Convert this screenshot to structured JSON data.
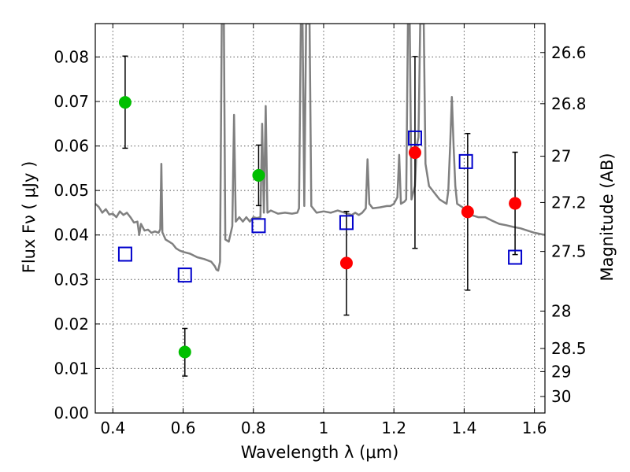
{
  "chart_data": {
    "type": "scatter",
    "xlabel": "Wavelength  λ (μm)",
    "ylabel": "Flux  Fν  ( μJy )",
    "y2label": "Magnitude (AB)",
    "xlim": [
      0.35,
      1.63
    ],
    "ylim": [
      0.0,
      0.0875
    ],
    "x_ticks": [
      0.4,
      0.6,
      0.8,
      1.0,
      1.2,
      1.4,
      1.6
    ],
    "x_tick_labels": [
      "0.4",
      "0.6",
      "0.8",
      "1",
      "1.2",
      "1.4",
      "1.6"
    ],
    "y_ticks": [
      0.0,
      0.01,
      0.02,
      0.03,
      0.04,
      0.05,
      0.06,
      0.07,
      0.08
    ],
    "y_tick_labels": [
      "0.00",
      "0.01",
      "0.02",
      "0.03",
      "0.04",
      "0.05",
      "0.06",
      "0.07",
      "0.08"
    ],
    "y2_ticks": [
      {
        "label": "26.6",
        "flux": 0.081
      },
      {
        "label": "26.8",
        "flux": 0.0695
      },
      {
        "label": "27",
        "flux": 0.0577
      },
      {
        "label": "27.2",
        "flux": 0.0473
      },
      {
        "label": "27.5",
        "flux": 0.0363
      },
      {
        "label": "28",
        "flux": 0.0229
      },
      {
        "label": "28.5",
        "flux": 0.0145
      },
      {
        "label": "29",
        "flux": 0.0093
      },
      {
        "label": "30",
        "flux": 0.0037
      }
    ],
    "grid": true,
    "series": [
      {
        "name": "model spectrum",
        "kind": "line",
        "color": "#808080",
        "points": [
          [
            0.35,
            0.047
          ],
          [
            0.36,
            0.0463
          ],
          [
            0.37,
            0.045
          ],
          [
            0.38,
            0.0458
          ],
          [
            0.39,
            0.0446
          ],
          [
            0.4,
            0.0448
          ],
          [
            0.41,
            0.044
          ],
          [
            0.42,
            0.0453
          ],
          [
            0.43,
            0.0445
          ],
          [
            0.44,
            0.045
          ],
          [
            0.45,
            0.044
          ],
          [
            0.46,
            0.0428
          ],
          [
            0.47,
            0.043
          ],
          [
            0.475,
            0.04
          ],
          [
            0.48,
            0.0425
          ],
          [
            0.49,
            0.041
          ],
          [
            0.5,
            0.0412
          ],
          [
            0.51,
            0.0405
          ],
          [
            0.52,
            0.0408
          ],
          [
            0.53,
            0.0405
          ],
          [
            0.535,
            0.0413
          ],
          [
            0.538,
            0.056
          ],
          [
            0.541,
            0.0406
          ],
          [
            0.55,
            0.039
          ],
          [
            0.56,
            0.0385
          ],
          [
            0.57,
            0.038
          ],
          [
            0.58,
            0.037
          ],
          [
            0.59,
            0.0365
          ],
          [
            0.6,
            0.0362
          ],
          [
            0.62,
            0.0358
          ],
          [
            0.64,
            0.035
          ],
          [
            0.66,
            0.0346
          ],
          [
            0.68,
            0.034
          ],
          [
            0.69,
            0.033
          ],
          [
            0.695,
            0.0322
          ],
          [
            0.7,
            0.032
          ],
          [
            0.705,
            0.034
          ],
          [
            0.71,
            0.0875
          ],
          [
            0.716,
            0.0875
          ],
          [
            0.72,
            0.039
          ],
          [
            0.73,
            0.0385
          ],
          [
            0.74,
            0.042
          ],
          [
            0.745,
            0.067
          ],
          [
            0.75,
            0.043
          ],
          [
            0.76,
            0.044
          ],
          [
            0.77,
            0.043
          ],
          [
            0.78,
            0.044
          ],
          [
            0.79,
            0.043
          ],
          [
            0.8,
            0.044
          ],
          [
            0.81,
            0.0438
          ],
          [
            0.82,
            0.044
          ],
          [
            0.825,
            0.065
          ],
          [
            0.83,
            0.045
          ],
          [
            0.835,
            0.069
          ],
          [
            0.84,
            0.045
          ],
          [
            0.85,
            0.0455
          ],
          [
            0.87,
            0.0448
          ],
          [
            0.89,
            0.045
          ],
          [
            0.91,
            0.0448
          ],
          [
            0.925,
            0.045
          ],
          [
            0.93,
            0.046
          ],
          [
            0.935,
            0.0875
          ],
          [
            0.94,
            0.0875
          ],
          [
            0.945,
            0.0465
          ],
          [
            0.95,
            0.0875
          ],
          [
            0.955,
            0.0875
          ],
          [
            0.96,
            0.0875
          ],
          [
            0.965,
            0.0465
          ],
          [
            0.98,
            0.045
          ],
          [
            1.0,
            0.0453
          ],
          [
            1.02,
            0.045
          ],
          [
            1.04,
            0.0455
          ],
          [
            1.06,
            0.045
          ],
          [
            1.08,
            0.0445
          ],
          [
            1.09,
            0.045
          ],
          [
            1.1,
            0.0445
          ],
          [
            1.11,
            0.045
          ],
          [
            1.12,
            0.046
          ],
          [
            1.125,
            0.057
          ],
          [
            1.13,
            0.047
          ],
          [
            1.14,
            0.046
          ],
          [
            1.16,
            0.0462
          ],
          [
            1.18,
            0.0465
          ],
          [
            1.19,
            0.0465
          ],
          [
            1.2,
            0.047
          ],
          [
            1.21,
            0.0485
          ],
          [
            1.215,
            0.058
          ],
          [
            1.22,
            0.047
          ],
          [
            1.23,
            0.0475
          ],
          [
            1.235,
            0.048
          ],
          [
            1.24,
            0.0875
          ],
          [
            1.245,
            0.0875
          ],
          [
            1.25,
            0.048
          ],
          [
            1.26,
            0.051
          ],
          [
            1.265,
            0.06
          ],
          [
            1.27,
            0.062
          ],
          [
            1.275,
            0.0875
          ],
          [
            1.285,
            0.0875
          ],
          [
            1.29,
            0.056
          ],
          [
            1.3,
            0.051
          ],
          [
            1.31,
            0.05
          ],
          [
            1.32,
            0.049
          ],
          [
            1.33,
            0.048
          ],
          [
            1.34,
            0.0475
          ],
          [
            1.35,
            0.047
          ],
          [
            1.355,
            0.05
          ],
          [
            1.36,
            0.06
          ],
          [
            1.365,
            0.071
          ],
          [
            1.37,
            0.06
          ],
          [
            1.375,
            0.051
          ],
          [
            1.38,
            0.047
          ],
          [
            1.4,
            0.046
          ],
          [
            1.42,
            0.0445
          ],
          [
            1.44,
            0.044
          ],
          [
            1.46,
            0.044
          ],
          [
            1.48,
            0.0432
          ],
          [
            1.5,
            0.0425
          ],
          [
            1.52,
            0.0422
          ],
          [
            1.54,
            0.0418
          ],
          [
            1.56,
            0.0415
          ],
          [
            1.58,
            0.041
          ],
          [
            1.6,
            0.0405
          ],
          [
            1.63,
            0.04
          ]
        ]
      },
      {
        "name": "green detections",
        "kind": "points",
        "color": "#00bf00",
        "marker": "circle",
        "x": [
          0.435,
          0.605,
          0.815
        ],
        "y": [
          0.0698,
          0.0137,
          0.0534
        ],
        "err_low": [
          0.0595,
          0.0083,
          0.0466
        ],
        "err_high": [
          0.0802,
          0.019,
          0.0602
        ]
      },
      {
        "name": "red detections",
        "kind": "points",
        "color": "#ff0000",
        "marker": "circle",
        "x": [
          1.065,
          1.26,
          1.41,
          1.545
        ],
        "y": [
          0.0337,
          0.0585,
          0.0452,
          0.0471
        ],
        "err_low": [
          0.022,
          0.037,
          0.0276,
          0.0356
        ],
        "err_high": [
          0.0453,
          0.0801,
          0.0628,
          0.0586
        ]
      },
      {
        "name": "model photometry",
        "kind": "points",
        "color": "#0000cc",
        "marker": "open-square",
        "x": [
          0.435,
          0.605,
          0.815,
          1.065,
          1.26,
          1.405,
          1.545
        ],
        "y": [
          0.0357,
          0.031,
          0.0421,
          0.0428,
          0.0618,
          0.0565,
          0.035
        ]
      }
    ]
  }
}
